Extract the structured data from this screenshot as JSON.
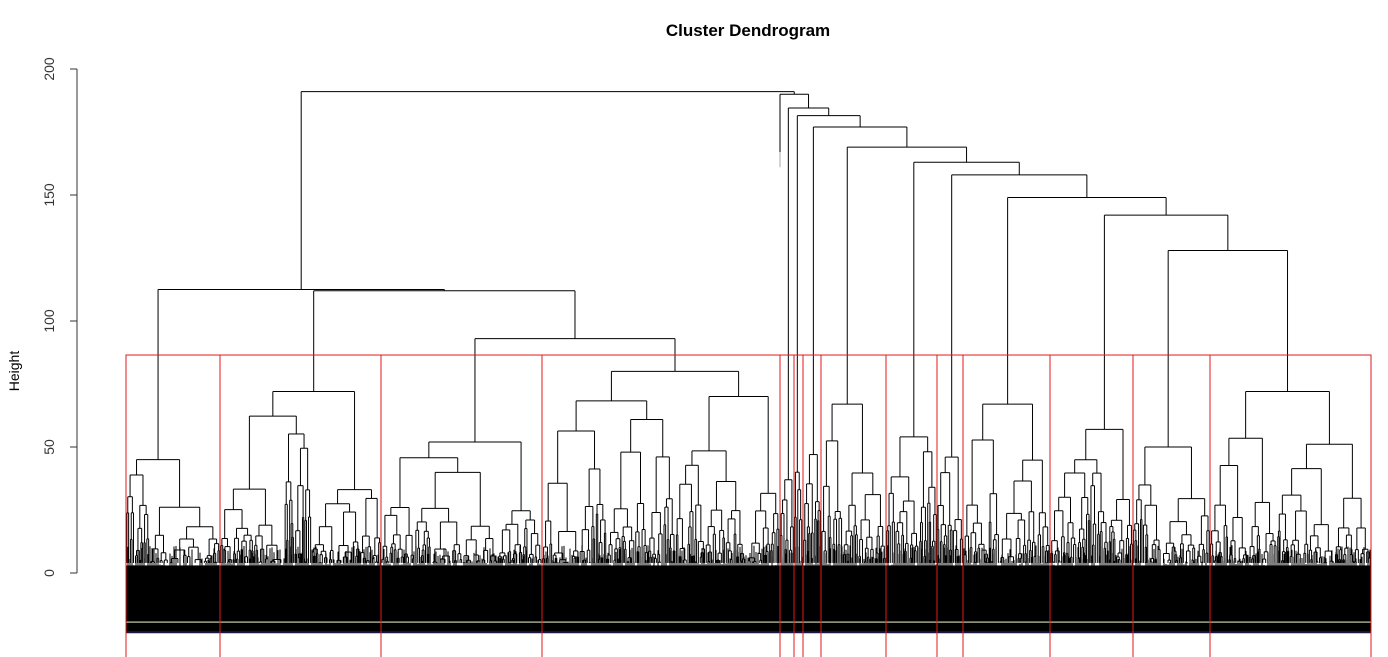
{
  "chart_data": {
    "type": "dendrogram",
    "title": "Cluster Dendrogram",
    "xlabel": "",
    "ylabel": "Height",
    "ylim": [
      -33,
      200
    ],
    "yticks": [
      0,
      50,
      100,
      150,
      200
    ],
    "cut_height": 86.5,
    "cut_color": "#e31a1c",
    "line_color": "#000000",
    "clusters": [
      {
        "id": 1,
        "leaves": 94,
        "height": 45
      },
      {
        "id": 2,
        "leaves": 161,
        "height": 72
      },
      {
        "id": 3,
        "leaves": 161,
        "height": 52
      },
      {
        "id": 4,
        "leaves": 238,
        "height": 80
      },
      {
        "id": 5,
        "leaves": 14,
        "height": 37
      },
      {
        "id": 6,
        "leaves": 9,
        "height": 40
      },
      {
        "id": 7,
        "leaves": 18,
        "height": 47
      },
      {
        "id": 8,
        "leaves": 65,
        "height": 67
      },
      {
        "id": 9,
        "leaves": 51,
        "height": 54
      },
      {
        "id": 10,
        "leaves": 26,
        "height": 46
      },
      {
        "id": 11,
        "leaves": 87,
        "height": 67
      },
      {
        "id": 12,
        "leaves": 83,
        "height": 57
      },
      {
        "id": 13,
        "leaves": 77,
        "height": 50
      },
      {
        "id": 14,
        "leaves": 161,
        "height": 72
      }
    ],
    "merges": {
      "h": 191,
      "children": [
        {
          "h": 112.5,
          "children": [
            {
              "c": 0
            },
            {
              "h": 112,
              "children": [
                {
                  "c": 1
                },
                {
                  "h": 93,
                  "children": [
                    {
                      "c": 2
                    },
                    {
                      "c": 3
                    }
                  ]
                }
              ]
            }
          ]
        },
        {
          "h": 190,
          "children": [
            {
              "stub": 167
            },
            {
              "h": 184.5,
              "children": [
                {
                  "c": 4
                },
                {
                  "h": 181.5,
                  "children": [
                    {
                      "c": 5
                    },
                    {
                      "h": 177,
                      "children": [
                        {
                          "c": 6
                        },
                        {
                          "h": 169,
                          "children": [
                            {
                              "c": 7
                            },
                            {
                              "h": 163,
                              "children": [
                                {
                                  "c": 8
                                },
                                {
                                  "h": 158,
                                  "children": [
                                    {
                                      "c": 9
                                    },
                                    {
                                      "h": 149,
                                      "children": [
                                        {
                                          "c": 10
                                        },
                                        {
                                          "h": 142,
                                          "children": [
                                            {
                                              "c": 11
                                            },
                                            {
                                              "h": 128,
                                              "children": [
                                                {
                                                  "c": 12
                                                },
                                                {
                                                  "c": 13
                                                }
                                              ]
                                            }
                                          ]
                                        }
                                      ]
                                    }
                                  ]
                                }
                              ]
                            }
                          ]
                        }
                      ]
                    }
                  ]
                }
              ]
            }
          ]
        }
      ]
    }
  }
}
